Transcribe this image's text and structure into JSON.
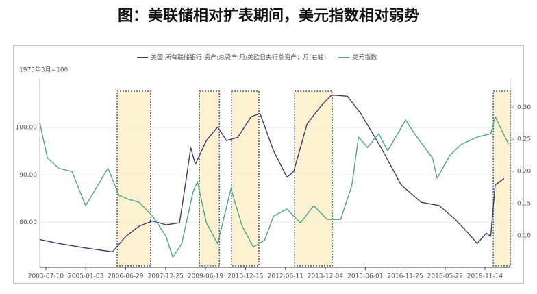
{
  "title": "图：美联储相对扩表期间，美元指数相对弱势",
  "chart_data": {
    "type": "line",
    "ylabel": "1973年3月=100",
    "xlim": [
      "2003-04-18",
      "2020-10-24"
    ],
    "xticks": [
      "2003-07-10",
      "2005-01-03",
      "2006-06-29",
      "2007-12-25",
      "2009-06-19",
      "2010-12-15",
      "2012-06-11",
      "2013-12-04",
      "2015-06-01",
      "2016-11-25",
      "2018-05-22",
      "2019-11-14"
    ],
    "ylim": [
      70.5,
      110.3
    ],
    "yticks": [
      {
        "value": 80,
        "label": "80.00"
      },
      {
        "value": 90,
        "label": "90.00"
      },
      {
        "value": 100,
        "label": "100.00"
      }
    ],
    "y2lim": [
      0.051,
      0.344
    ],
    "y2ticks": [
      {
        "value": 0.1,
        "label": "0.10"
      },
      {
        "value": 0.15,
        "label": "0.15"
      },
      {
        "value": 0.2,
        "label": "0.20"
      },
      {
        "value": 0.25,
        "label": "0.25"
      },
      {
        "value": 0.3,
        "label": "0.30"
      }
    ],
    "grid": true,
    "highlights": [
      [
        "2006-03-06",
        "2007-06-05"
      ],
      [
        "2009-03-28",
        "2009-12-24"
      ],
      [
        "2010-06-09",
        "2011-06-16"
      ],
      [
        "2012-10-14",
        "2014-03-09"
      ],
      [
        "2020-03-06",
        "2020-10-24"
      ]
    ],
    "series": [
      {
        "name": "美国:所有联储银行:资产:总资产:月/美欧日央行总资产：月(右轴)",
        "color": "#3c3d6b",
        "axis": "y2",
        "x": [
          "2003-04-20",
          "2004-01-01",
          "2005-01-01",
          "2006-01-01",
          "2006-07-01",
          "2007-01-01",
          "2007-07-01",
          "2008-01-01",
          "2008-07-01",
          "2008-10-01",
          "2008-12-01",
          "2009-02-01",
          "2009-07-01",
          "2009-12-01",
          "2010-04-01",
          "2010-09-01",
          "2011-03-01",
          "2011-07-01",
          "2012-01-01",
          "2012-07-01",
          "2012-10-01",
          "2013-04-01",
          "2013-10-01",
          "2014-03-01",
          "2014-10-01",
          "2015-04-01",
          "2016-01-01",
          "2016-10-01",
          "2017-07-01",
          "2018-03-01",
          "2018-10-01",
          "2019-04-01",
          "2019-08-01",
          "2019-12-01",
          "2020-02-01",
          "2020-04-01",
          "2020-08-01"
        ],
        "values": [
          0.094,
          0.088,
          0.081,
          0.075,
          0.099,
          0.115,
          0.123,
          0.117,
          0.12,
          0.189,
          0.237,
          0.211,
          0.248,
          0.269,
          0.248,
          0.253,
          0.285,
          0.29,
          0.232,
          0.191,
          0.2,
          0.274,
          0.301,
          0.319,
          0.317,
          0.29,
          0.237,
          0.179,
          0.152,
          0.147,
          0.126,
          0.104,
          0.088,
          0.104,
          0.099,
          0.179,
          0.189
        ]
      },
      {
        "name": "美元指数",
        "color": "#4fa488",
        "x": [
          "2003-04-20",
          "2003-08-01",
          "2004-01-01",
          "2004-07-01",
          "2005-01-01",
          "2005-11-01",
          "2006-04-01",
          "2006-08-01",
          "2007-01-01",
          "2007-07-01",
          "2008-01-01",
          "2008-04-01",
          "2008-08-01",
          "2009-01-01",
          "2009-03-01",
          "2009-07-01",
          "2009-12-01",
          "2010-06-01",
          "2010-11-01",
          "2011-04-01",
          "2011-09-01",
          "2012-01-01",
          "2012-07-01",
          "2013-01-01",
          "2013-07-01",
          "2014-01-01",
          "2014-07-01",
          "2014-12-01",
          "2015-03-01",
          "2015-07-01",
          "2015-12-01",
          "2016-04-01",
          "2016-12-01",
          "2017-04-01",
          "2017-12-01",
          "2018-02-01",
          "2018-08-01",
          "2019-01-01",
          "2019-08-01",
          "2020-02-01",
          "2020-04-01",
          "2020-07-01",
          "2020-10-01"
        ],
        "values": [
          100.9,
          93.6,
          91.4,
          90.7,
          83.5,
          91.4,
          85.7,
          84.9,
          84.2,
          81.3,
          77,
          72.6,
          75.5,
          86.4,
          88.6,
          79.9,
          75.5,
          87.1,
          79.1,
          74.8,
          76.2,
          81.3,
          82.8,
          79.9,
          83.5,
          80.6,
          80.6,
          87.8,
          98,
          95.8,
          98.7,
          95.1,
          101.6,
          98.7,
          93.6,
          89.3,
          94.3,
          96.5,
          98,
          98.7,
          102.3,
          99.4,
          96.5
        ]
      }
    ]
  }
}
